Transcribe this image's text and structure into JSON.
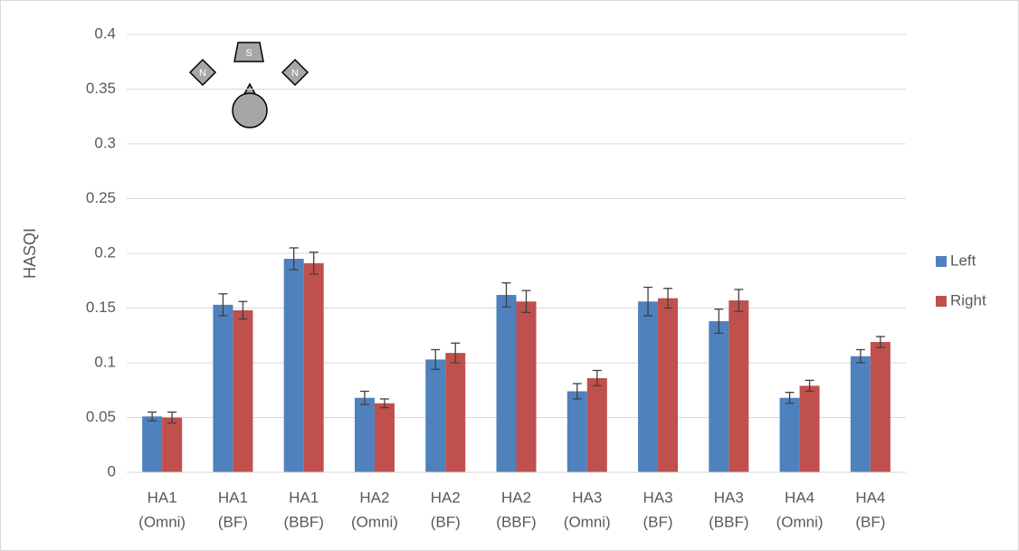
{
  "chart_data": {
    "type": "bar",
    "y_label": "HASQI",
    "categories": [
      [
        "HA1",
        "(Omni)"
      ],
      [
        "HA1",
        "(BF)"
      ],
      [
        "HA1",
        "(BBF)"
      ],
      [
        "HA2",
        "(Omni)"
      ],
      [
        "HA2",
        "(BF)"
      ],
      [
        "HA2",
        "(BBF)"
      ],
      [
        "HA3",
        "(Omni)"
      ],
      [
        "HA3",
        "(BF)"
      ],
      [
        "HA3",
        "(BBF)"
      ],
      [
        "HA4",
        "(Omni)"
      ],
      [
        "HA4",
        "(BF)"
      ]
    ],
    "series": [
      {
        "name": "Left",
        "color": "#4f81bd",
        "values": [
          0.051,
          0.153,
          0.195,
          0.068,
          0.103,
          0.162,
          0.074,
          0.156,
          0.138,
          0.068,
          0.106
        ],
        "errors": [
          0.004,
          0.01,
          0.01,
          0.006,
          0.009,
          0.011,
          0.007,
          0.013,
          0.011,
          0.005,
          0.006
        ]
      },
      {
        "name": "Right",
        "color": "#c0504d",
        "values": [
          0.05,
          0.148,
          0.191,
          0.063,
          0.109,
          0.156,
          0.086,
          0.159,
          0.157,
          0.079,
          0.119
        ],
        "errors": [
          0.005,
          0.008,
          0.01,
          0.004,
          0.009,
          0.01,
          0.007,
          0.009,
          0.01,
          0.005,
          0.005
        ]
      }
    ],
    "ylim": [
      0,
      0.4
    ],
    "yticks": [
      0,
      0.05,
      0.1,
      0.15,
      0.2,
      0.25,
      0.3,
      0.35,
      0.4
    ],
    "grid": true,
    "legend": "right",
    "icon_labels": [
      "N",
      "S",
      "N"
    ]
  }
}
